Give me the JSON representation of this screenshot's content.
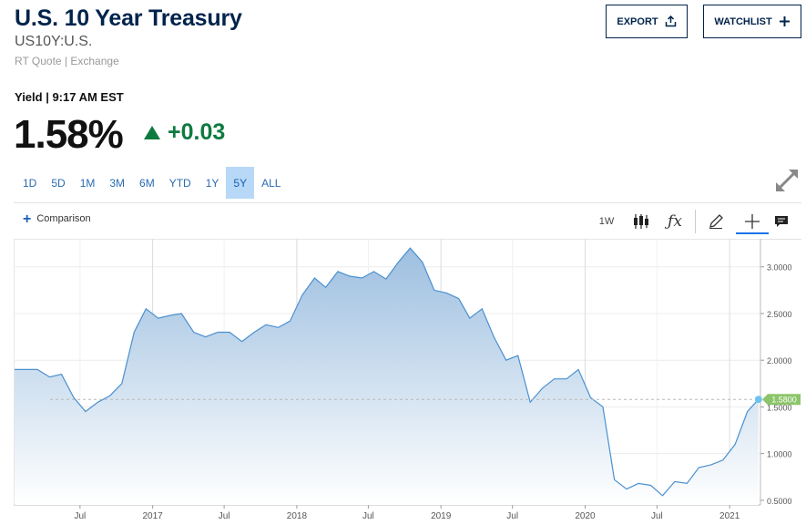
{
  "header": {
    "title": "U.S. 10 Year Treasury",
    "symbol": "US10Y:U.S.",
    "quote_source": "RT Quote | Exchange"
  },
  "actions": {
    "export_label": "EXPORT",
    "watchlist_label": "WATCHLIST"
  },
  "quote": {
    "yield_time": "Yield | 9:17 AM EST",
    "last": "1.58%",
    "change": "+0.03",
    "change_color": "#0e7a3f"
  },
  "ranges": [
    "1D",
    "5D",
    "1M",
    "3M",
    "6M",
    "YTD",
    "1Y",
    "5Y",
    "ALL"
  ],
  "active_range": "5Y",
  "toolbar": {
    "comparison_label": "Comparison",
    "interval_label": "1W",
    "icons": [
      "candlestick-icon",
      "function-icon",
      "draw-icon",
      "crosshair-icon",
      "events-icon"
    ]
  },
  "chart_data": {
    "type": "area",
    "title": "",
    "xlabel": "",
    "ylabel": "",
    "x_tick_labels": [
      "Jul",
      "2017",
      "Jul",
      "2018",
      "Jul",
      "2019",
      "Jul",
      "2020",
      "Jul",
      "2021"
    ],
    "y_tick_labels": [
      "3.0000",
      "2.5000",
      "2.0000",
      "1.5000",
      "1.0000",
      "0.5000"
    ],
    "ylim": [
      0.45,
      3.3
    ],
    "last_value_label": "1.5800",
    "last_value": 1.58,
    "colors": {
      "line": "#4a90d0",
      "fill_top": "#9dbfe0",
      "fill_bottom": "#ffffff",
      "marker": "#6cc4ee",
      "last_label_bg": "#8cc56a"
    },
    "grid": true,
    "series": [
      {
        "x": [
          "2016-03",
          "2016-04",
          "2016-05",
          "2016-06",
          "2016-07",
          "2016-08",
          "2016-09",
          "2016-10",
          "2016-11",
          "2016-12",
          "2017-01",
          "2017-02",
          "2017-03",
          "2017-04",
          "2017-05",
          "2017-06",
          "2017-07",
          "2017-08",
          "2017-09",
          "2017-10",
          "2017-11",
          "2017-12",
          "2018-01",
          "2018-02",
          "2018-03",
          "2018-04",
          "2018-05",
          "2018-06",
          "2018-07",
          "2018-08",
          "2018-09",
          "2018-10",
          "2018-11",
          "2018-12",
          "2019-01",
          "2019-02",
          "2019-03",
          "2019-04",
          "2019-05",
          "2019-06",
          "2019-07",
          "2019-08",
          "2019-09",
          "2019-10",
          "2019-11",
          "2019-12",
          "2020-01",
          "2020-02",
          "2020-03",
          "2020-04",
          "2020-05",
          "2020-06",
          "2020-07",
          "2020-08",
          "2020-09",
          "2020-10",
          "2020-11",
          "2020-12",
          "2021-01",
          "2021-02",
          "2021-03"
        ],
        "y": [
          1.9,
          1.82,
          1.85,
          1.6,
          1.45,
          1.55,
          1.62,
          1.75,
          2.3,
          2.55,
          2.45,
          2.48,
          2.5,
          2.3,
          2.25,
          2.3,
          2.3,
          2.2,
          2.3,
          2.38,
          2.35,
          2.42,
          2.7,
          2.88,
          2.78,
          2.95,
          2.9,
          2.88,
          2.95,
          2.87,
          3.05,
          3.2,
          3.05,
          2.75,
          2.72,
          2.66,
          2.45,
          2.55,
          2.25,
          2.0,
          2.05,
          1.55,
          1.7,
          1.8,
          1.8,
          1.9,
          1.6,
          1.5,
          0.72,
          0.62,
          0.68,
          0.66,
          0.55,
          0.7,
          0.68,
          0.85,
          0.88,
          0.93,
          1.1,
          1.45,
          1.58
        ]
      }
    ]
  }
}
